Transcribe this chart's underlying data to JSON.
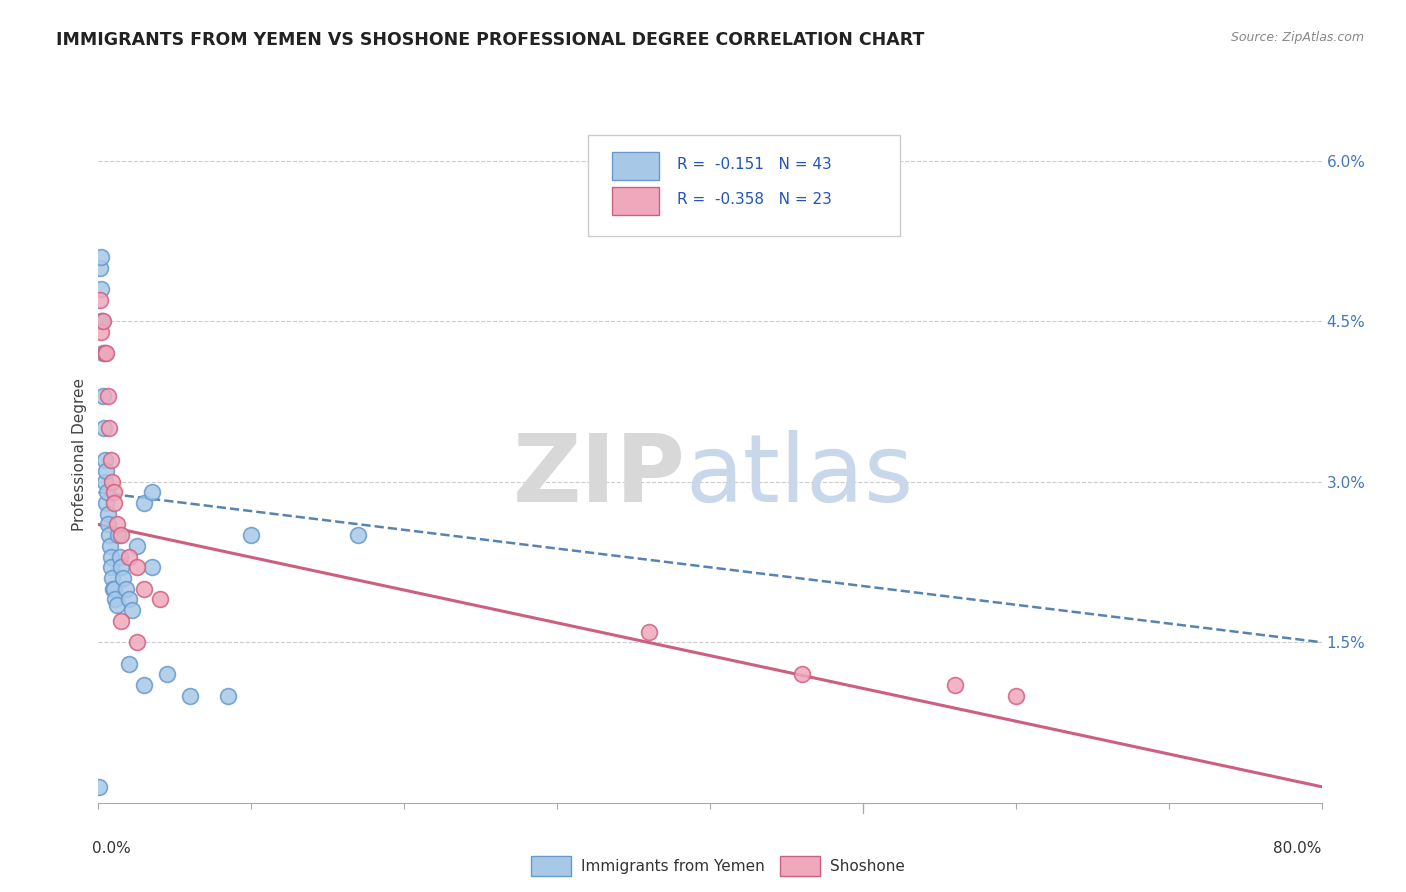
{
  "title": "IMMIGRANTS FROM YEMEN VS SHOSHONE PROFESSIONAL DEGREE CORRELATION CHART",
  "source": "Source: ZipAtlas.com",
  "ylabel": "Professional Degree",
  "xmin": 0.0,
  "xmax": 80.0,
  "ymin": 0.0,
  "ymax": 6.5,
  "right_yticks": [
    0.0,
    1.5,
    3.0,
    4.5,
    6.0
  ],
  "right_yticklabels": [
    "",
    "1.5%",
    "3.0%",
    "4.5%",
    "6.0%"
  ],
  "legend_r1": "R =  -0.151   N = 43",
  "legend_r2": "R =  -0.358   N = 23",
  "legend_label1": "Immigrants from Yemen",
  "legend_label2": "Shoshone",
  "color_blue": "#a8c8e8",
  "color_pink": "#f0a8bc",
  "edge_blue": "#6699cc",
  "edge_pink": "#d06080",
  "trendline_blue_color": "#4477aa",
  "trendline_pink_color": "#cc5577",
  "blue_line_start_y": 2.9,
  "blue_line_end_y": 1.5,
  "pink_line_start_y": 2.6,
  "pink_line_end_y": 0.15,
  "blue_x": [
    0.1,
    0.15,
    0.2,
    0.2,
    0.25,
    0.3,
    0.3,
    0.35,
    0.4,
    0.45,
    0.5,
    0.5,
    0.55,
    0.6,
    0.65,
    0.7,
    0.75,
    0.8,
    0.85,
    0.9,
    0.95,
    1.0,
    1.1,
    1.2,
    1.3,
    1.4,
    1.5,
    1.6,
    1.8,
    2.0,
    2.2,
    2.5,
    3.0,
    3.5,
    4.5,
    6.0,
    8.5,
    3.5,
    10.0,
    17.0,
    3.0,
    2.0,
    0.05
  ],
  "blue_y": [
    5.0,
    4.8,
    5.1,
    4.5,
    4.5,
    4.2,
    3.8,
    3.5,
    3.2,
    3.0,
    3.1,
    2.8,
    2.9,
    2.7,
    2.6,
    2.5,
    2.4,
    2.3,
    2.2,
    2.1,
    2.0,
    2.0,
    1.9,
    1.85,
    2.5,
    2.3,
    2.2,
    2.1,
    2.0,
    1.9,
    1.8,
    2.4,
    2.8,
    2.2,
    1.2,
    1.0,
    1.0,
    2.9,
    2.5,
    2.5,
    1.1,
    1.3,
    0.15
  ],
  "pink_x": [
    0.1,
    0.2,
    0.3,
    0.4,
    0.5,
    0.6,
    0.7,
    0.8,
    0.9,
    1.0,
    1.2,
    1.5,
    2.0,
    2.5,
    3.0,
    4.0,
    1.5,
    2.5,
    36.0,
    46.0,
    56.0,
    60.0,
    1.0
  ],
  "pink_y": [
    4.7,
    4.4,
    4.5,
    4.2,
    4.2,
    3.8,
    3.5,
    3.2,
    3.0,
    2.9,
    2.6,
    2.5,
    2.3,
    2.2,
    2.0,
    1.9,
    1.7,
    1.5,
    1.6,
    1.2,
    1.1,
    1.0,
    2.8
  ]
}
